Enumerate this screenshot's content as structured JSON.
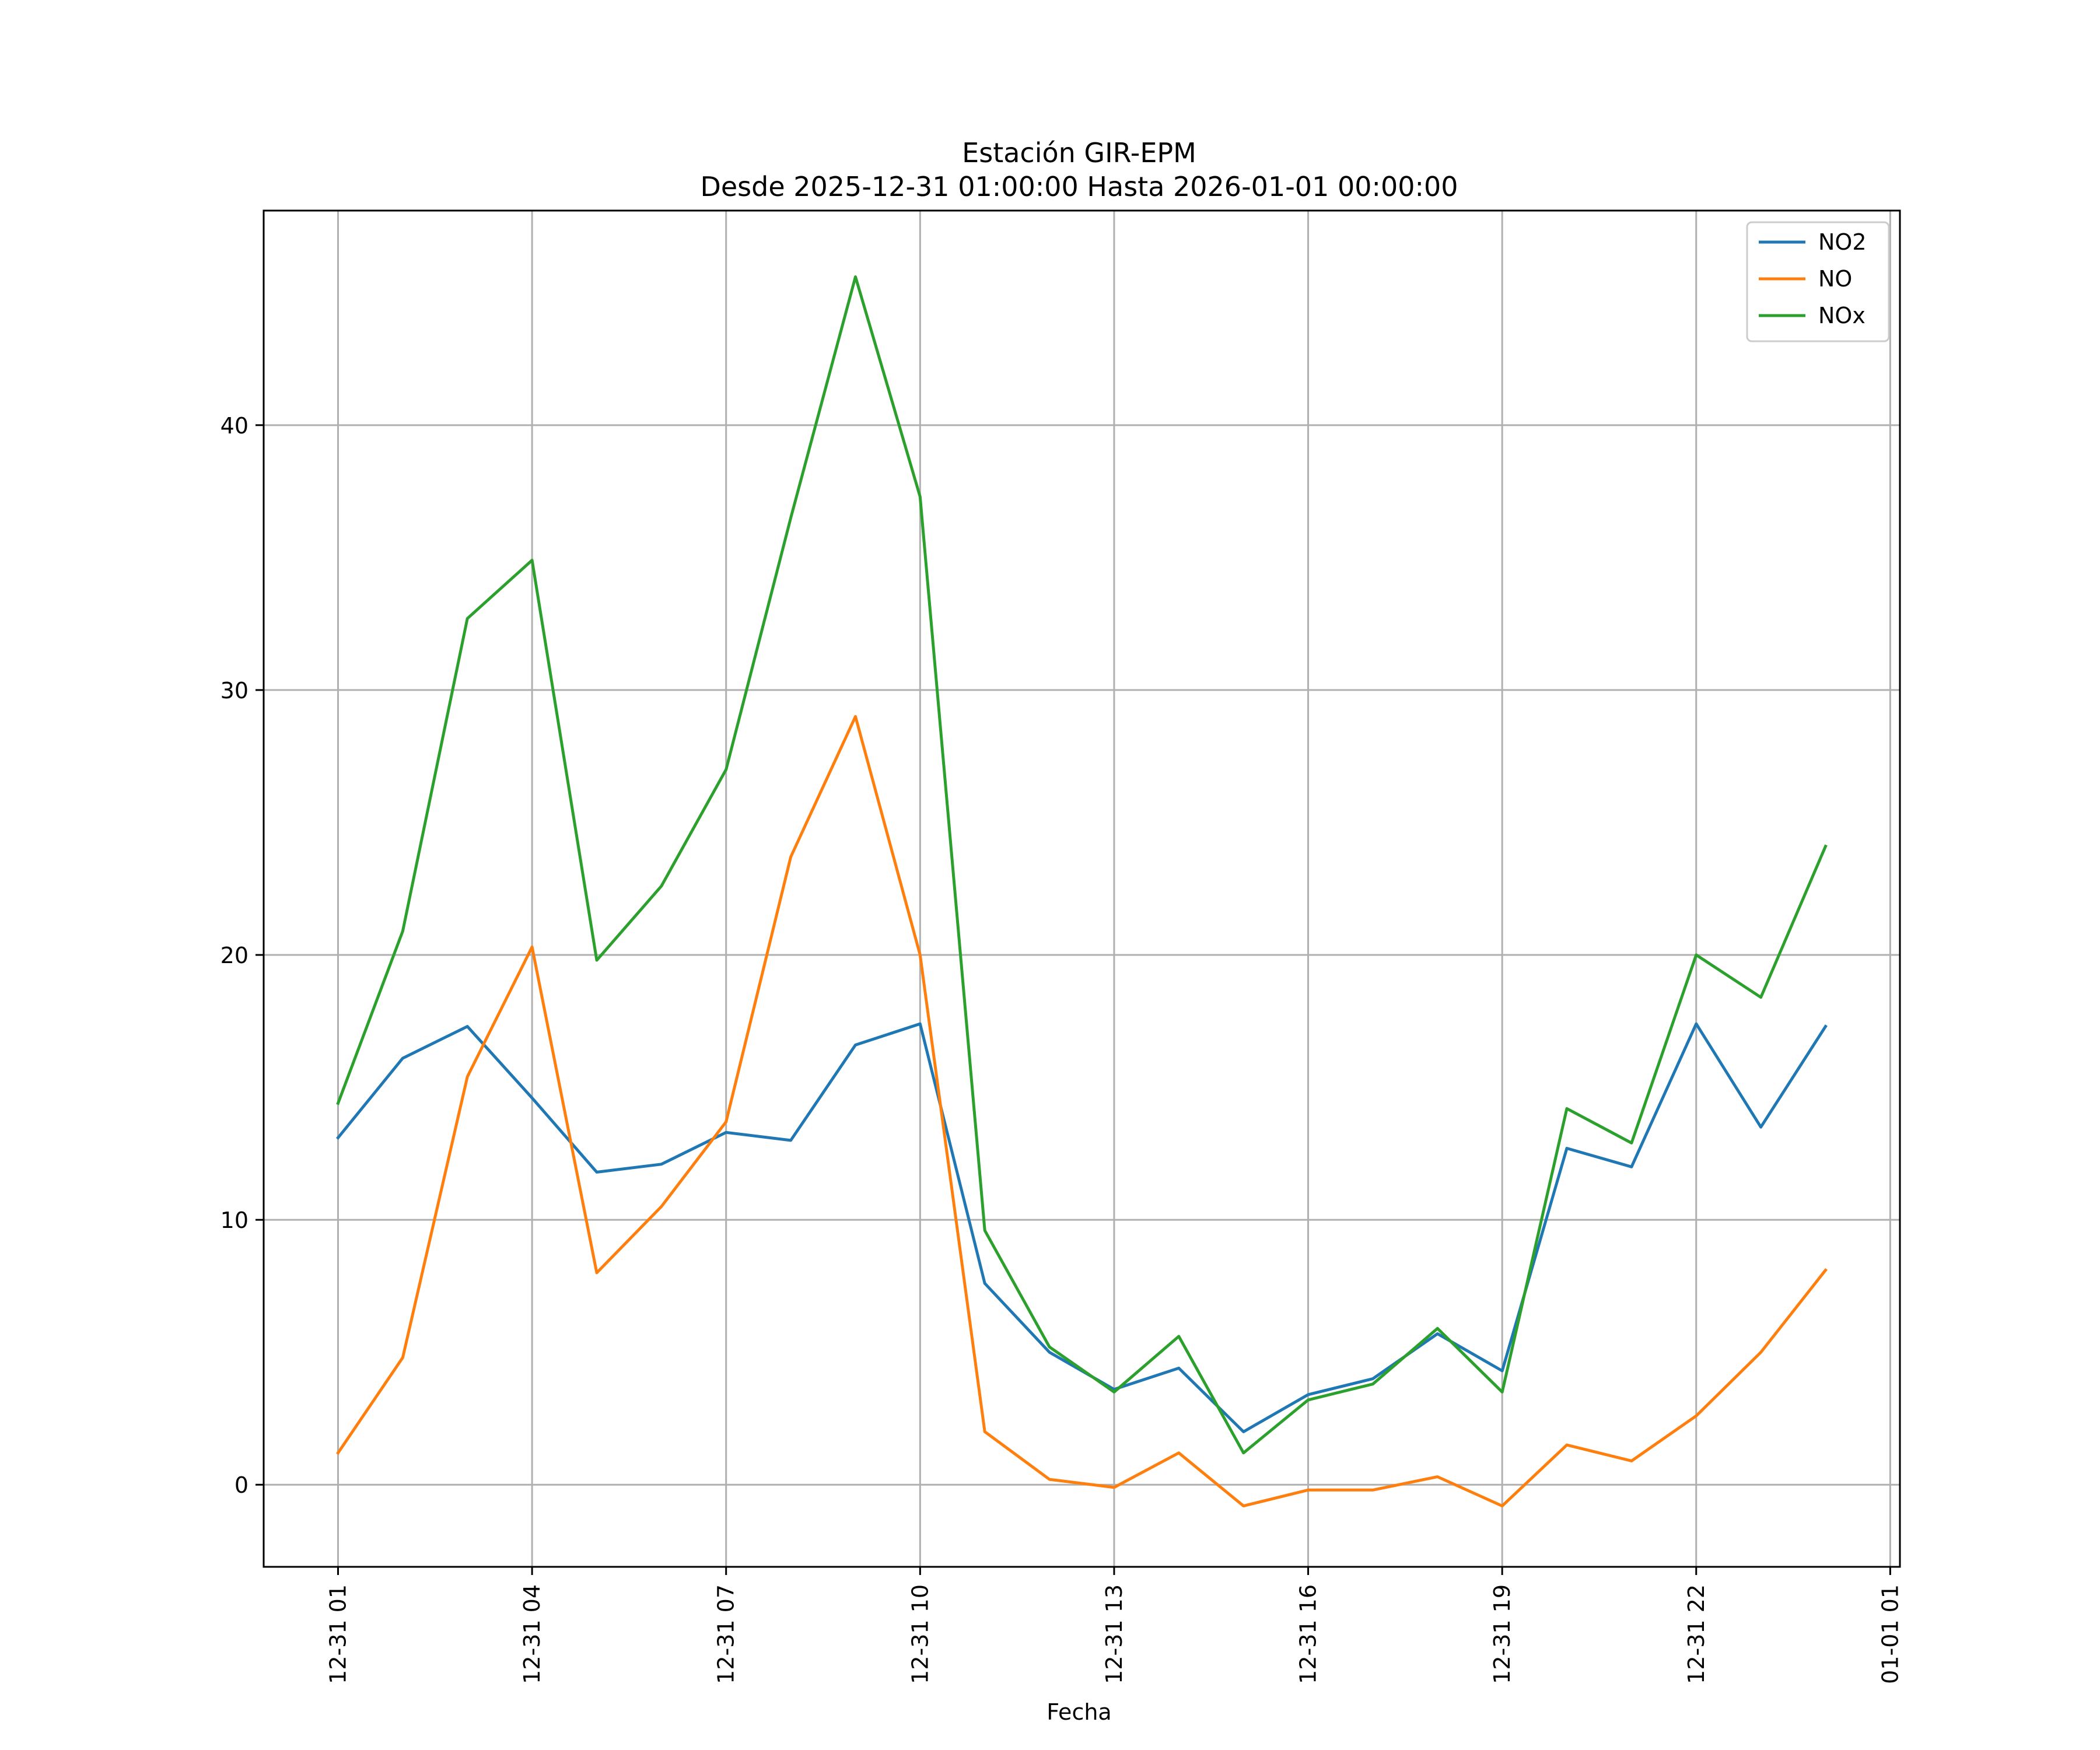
{
  "chart_data": {
    "type": "line",
    "title": "Estación GIR-EPM",
    "subtitle": "Desde 2025-12-31 01:00:00 Hasta 2026-01-01 00:00:00",
    "xlabel": "Fecha",
    "ylabel": "",
    "x": [
      1,
      2,
      3,
      4,
      5,
      6,
      7,
      8,
      9,
      10,
      11,
      12,
      13,
      14,
      15,
      16,
      17,
      18,
      19,
      20,
      21,
      22,
      23,
      24
    ],
    "x_ticks": [
      {
        "value": 1,
        "label": "12-31 01"
      },
      {
        "value": 4,
        "label": "12-31 04"
      },
      {
        "value": 7,
        "label": "12-31 07"
      },
      {
        "value": 10,
        "label": "12-31 10"
      },
      {
        "value": 13,
        "label": "12-31 13"
      },
      {
        "value": 16,
        "label": "12-31 16"
      },
      {
        "value": 19,
        "label": "12-31 19"
      },
      {
        "value": 22,
        "label": "12-31 22"
      },
      {
        "value": 25,
        "label": "01-01 01"
      }
    ],
    "xlim": [
      -0.15,
      25.15
    ],
    "y_ticks": [
      0,
      10,
      20,
      30,
      40
    ],
    "ylim": [
      -3.1,
      48.1
    ],
    "grid": true,
    "legend_position": "top-right",
    "series": [
      {
        "name": "NO2",
        "color": "#1f77b4",
        "values": [
          13.1,
          16.1,
          17.3,
          14.6,
          11.8,
          12.1,
          13.3,
          13.0,
          16.6,
          17.4,
          7.6,
          5.0,
          3.6,
          4.4,
          2.0,
          3.4,
          4.0,
          5.7,
          4.3,
          12.7,
          12.0,
          17.4,
          13.5,
          17.3
        ]
      },
      {
        "name": "NO",
        "color": "#ff7f0e",
        "values": [
          1.2,
          4.8,
          15.4,
          20.3,
          8.0,
          10.5,
          13.7,
          23.7,
          29.0,
          20.0,
          2.0,
          0.2,
          -0.1,
          1.2,
          -0.8,
          -0.2,
          -0.2,
          0.3,
          -0.8,
          1.5,
          0.9,
          2.6,
          5.0,
          8.1
        ]
      },
      {
        "name": "NOx",
        "color": "#2ca02c",
        "values": [
          14.4,
          20.9,
          32.7,
          34.9,
          19.8,
          22.6,
          27.0,
          36.5,
          45.6,
          37.3,
          9.6,
          5.2,
          3.5,
          5.6,
          1.2,
          3.2,
          3.8,
          5.9,
          3.5,
          14.2,
          12.9,
          20.0,
          18.4,
          24.1
        ]
      }
    ]
  }
}
